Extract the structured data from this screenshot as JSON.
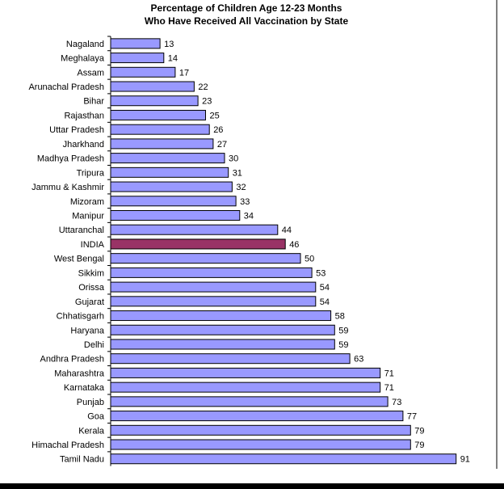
{
  "chart_data": {
    "type": "bar",
    "orientation": "horizontal",
    "title": "Percentage of Children Age 12-23 Months",
    "subtitle": "Who Have Received All Vaccination  by State",
    "xlabel": "",
    "ylabel": "",
    "xlim": [
      0,
      100
    ],
    "grid": false,
    "categories": [
      "Nagaland",
      "Meghalaya",
      "Assam",
      "Arunachal Pradesh",
      "Bihar",
      "Rajasthan",
      "Uttar Pradesh",
      "Jharkhand",
      "Madhya Pradesh",
      "Tripura",
      "Jammu & Kashmir",
      "Mizoram",
      "Manipur",
      "Uttaranchal",
      "INDIA",
      "West Bengal",
      "Sikkim",
      "Orissa",
      "Gujarat",
      "Chhatisgarh",
      "Haryana",
      "Delhi",
      "Andhra Pradesh",
      "Maharashtra",
      "Karnataka",
      "Punjab",
      "Goa",
      "Kerala",
      "Himachal Pradesh",
      "Tamil Nadu"
    ],
    "values": [
      13,
      14,
      17,
      22,
      23,
      25,
      26,
      27,
      30,
      31,
      32,
      33,
      34,
      44,
      46,
      50,
      53,
      54,
      54,
      58,
      59,
      59,
      63,
      71,
      71,
      73,
      77,
      79,
      79,
      91
    ],
    "highlight_category": "INDIA",
    "colors": {
      "bar": "#9999ff",
      "highlight": "#993366",
      "outline": "#000000"
    }
  }
}
